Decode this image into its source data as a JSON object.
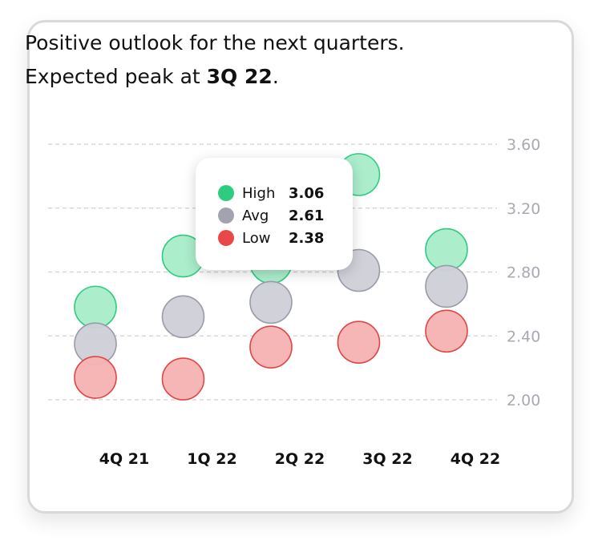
{
  "headline": {
    "line1": "Positive outlook for the next quarters.",
    "line2_prefix": "Expected peak at ",
    "line2_bold": "3Q 22",
    "line2_suffix": "."
  },
  "tooltip": {
    "rows": [
      {
        "name": "High",
        "value": "3.06",
        "color": "#2ecc7f"
      },
      {
        "name": "Avg",
        "value": "2.61",
        "color": "#a3a3b0"
      },
      {
        "name": "Low",
        "value": "2.38",
        "color": "#e84848"
      }
    ]
  },
  "chart_data": {
    "type": "scatter",
    "categories": [
      "4Q 21",
      "1Q 22",
      "2Q 22",
      "3Q 22",
      "4Q 22"
    ],
    "yticks": [
      "2.00",
      "2.40",
      "2.80",
      "3.20",
      "3.60"
    ],
    "ylim": [
      2.0,
      3.6
    ],
    "grid": true,
    "series": [
      {
        "name": "High",
        "color": "#2ecc7f",
        "fill": "#a8ecc9",
        "values": [
          2.58,
          2.9,
          2.86,
          3.41,
          2.94
        ]
      },
      {
        "name": "Avg",
        "color": "#9a9aa8",
        "fill": "#cfcfd8",
        "values": [
          2.35,
          2.52,
          2.61,
          2.81,
          2.71
        ]
      },
      {
        "name": "Low",
        "color": "#e04444",
        "fill": "#f5b2b2",
        "values": [
          2.14,
          2.13,
          2.33,
          2.36,
          2.43
        ]
      }
    ]
  }
}
